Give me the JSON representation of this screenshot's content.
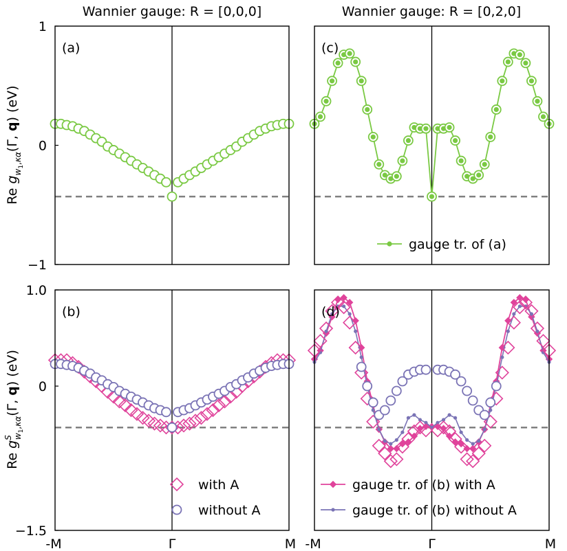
{
  "colors": {
    "green": "#7ac943",
    "magenta": "#e0439b",
    "purple": "#7a73b5",
    "dashed": "#808080"
  },
  "chart_data": [
    {
      "id": "a",
      "type": "scatter",
      "panel_label": "(a)",
      "title": "Wannier gauge: R = [0,0,0]",
      "ylabel": "Re g_{w1,κα}(Γ, q) (eV)",
      "ylim": [
        -1,
        1
      ],
      "y_ticks": [
        "1",
        "0",
        "−1"
      ],
      "x_ticks": [],
      "dashed_y": -0.43,
      "series": [
        {
          "marker": "open-circle",
          "color": "#7ac943",
          "x": [
            -1.0,
            -0.95,
            -0.9,
            -0.85,
            -0.8,
            -0.75,
            -0.7,
            -0.65,
            -0.6,
            -0.55,
            -0.5,
            -0.45,
            -0.4,
            -0.35,
            -0.3,
            -0.25,
            -0.2,
            -0.15,
            -0.1,
            -0.05,
            0.0,
            0.05,
            0.1,
            0.15,
            0.2,
            0.25,
            0.3,
            0.35,
            0.4,
            0.45,
            0.5,
            0.55,
            0.6,
            0.65,
            0.7,
            0.75,
            0.8,
            0.85,
            0.9,
            0.95,
            1.0
          ],
          "y": [
            0.18,
            0.18,
            0.17,
            0.16,
            0.14,
            0.12,
            0.09,
            0.06,
            0.03,
            -0.01,
            -0.04,
            -0.07,
            -0.1,
            -0.13,
            -0.16,
            -0.19,
            -0.22,
            -0.25,
            -0.28,
            -0.31,
            -0.43,
            -0.31,
            -0.28,
            -0.25,
            -0.22,
            -0.19,
            -0.16,
            -0.13,
            -0.1,
            -0.07,
            -0.04,
            -0.01,
            0.03,
            0.06,
            0.09,
            0.12,
            0.14,
            0.16,
            0.17,
            0.18,
            0.18
          ]
        }
      ]
    },
    {
      "id": "c",
      "type": "line",
      "panel_label": "(c)",
      "title": "Wannier gauge: R = [0,2,0]",
      "ylim": [
        -1,
        1
      ],
      "y_ticks": [],
      "x_ticks": [],
      "dashed_y": -0.43,
      "legend": {
        "position": "bottom-right",
        "entries": [
          "gauge tr. of (a)"
        ]
      },
      "series": [
        {
          "name": "gauge tr. of (a)",
          "marker": "filled-dot-line",
          "color": "#7ac943",
          "circled": true,
          "x": [
            -1.0,
            -0.95,
            -0.9,
            -0.85,
            -0.8,
            -0.75,
            -0.7,
            -0.65,
            -0.6,
            -0.55,
            -0.5,
            -0.45,
            -0.4,
            -0.35,
            -0.3,
            -0.25,
            -0.2,
            -0.15,
            -0.1,
            -0.05,
            0.0,
            0.05,
            0.1,
            0.15,
            0.2,
            0.25,
            0.3,
            0.35,
            0.4,
            0.45,
            0.5,
            0.55,
            0.6,
            0.65,
            0.7,
            0.75,
            0.8,
            0.85,
            0.9,
            0.95,
            1.0
          ],
          "y": [
            0.18,
            0.24,
            0.37,
            0.54,
            0.69,
            0.76,
            0.77,
            0.7,
            0.54,
            0.3,
            0.07,
            -0.16,
            -0.25,
            -0.28,
            -0.26,
            -0.13,
            0.04,
            0.15,
            0.14,
            0.14,
            -0.43,
            0.14,
            0.14,
            0.15,
            0.04,
            -0.13,
            -0.26,
            -0.28,
            -0.25,
            -0.16,
            0.07,
            0.3,
            0.54,
            0.7,
            0.77,
            0.76,
            0.69,
            0.54,
            0.37,
            0.24,
            0.18
          ]
        }
      ]
    },
    {
      "id": "b",
      "type": "scatter",
      "panel_label": "(b)",
      "ylabel": "Re g^S_{w1,κα}(Γ, q) (eV)",
      "ylim": [
        -1.5,
        1.0
      ],
      "y_ticks": [
        "1.0",
        "0",
        "−1.5"
      ],
      "x_ticks": [
        "-M",
        "Γ",
        "M"
      ],
      "dashed_y": -0.43,
      "legend": {
        "position": "bottom-right",
        "entries": [
          "with A",
          "without A"
        ]
      },
      "series": [
        {
          "name": "with A",
          "marker": "open-diamond",
          "color": "#e0439b",
          "x": [
            -1.0,
            -0.95,
            -0.9,
            -0.85,
            -0.8,
            -0.75,
            -0.7,
            -0.65,
            -0.6,
            -0.55,
            -0.5,
            -0.45,
            -0.4,
            -0.35,
            -0.3,
            -0.25,
            -0.2,
            -0.15,
            -0.1,
            -0.05,
            0.0,
            0.05,
            0.1,
            0.15,
            0.2,
            0.25,
            0.3,
            0.35,
            0.4,
            0.45,
            0.5,
            0.55,
            0.6,
            0.65,
            0.7,
            0.75,
            0.8,
            0.85,
            0.9,
            0.95,
            1.0
          ],
          "y": [
            0.27,
            0.27,
            0.27,
            0.24,
            0.2,
            0.15,
            0.1,
            0.05,
            0.0,
            -0.06,
            -0.11,
            -0.16,
            -0.2,
            -0.25,
            -0.29,
            -0.33,
            -0.36,
            -0.39,
            -0.41,
            -0.43,
            -0.43,
            -0.43,
            -0.41,
            -0.39,
            -0.36,
            -0.33,
            -0.29,
            -0.25,
            -0.2,
            -0.16,
            -0.11,
            -0.06,
            0.0,
            0.05,
            0.1,
            0.15,
            0.2,
            0.24,
            0.27,
            0.27,
            0.27
          ]
        },
        {
          "name": "without A",
          "marker": "open-circle",
          "color": "#7a73b5",
          "x": [
            -1.0,
            -0.95,
            -0.9,
            -0.85,
            -0.8,
            -0.75,
            -0.7,
            -0.65,
            -0.6,
            -0.55,
            -0.5,
            -0.45,
            -0.4,
            -0.35,
            -0.3,
            -0.25,
            -0.2,
            -0.15,
            -0.1,
            -0.05,
            0.0,
            0.05,
            0.1,
            0.15,
            0.2,
            0.25,
            0.3,
            0.35,
            0.4,
            0.45,
            0.5,
            0.55,
            0.6,
            0.65,
            0.7,
            0.75,
            0.8,
            0.85,
            0.9,
            0.95,
            1.0
          ],
          "y": [
            0.23,
            0.23,
            0.22,
            0.21,
            0.19,
            0.16,
            0.13,
            0.09,
            0.06,
            0.02,
            -0.01,
            -0.05,
            -0.08,
            -0.11,
            -0.14,
            -0.17,
            -0.2,
            -0.23,
            -0.25,
            -0.27,
            -0.43,
            -0.27,
            -0.25,
            -0.23,
            -0.2,
            -0.17,
            -0.14,
            -0.11,
            -0.08,
            -0.05,
            -0.01,
            0.02,
            0.06,
            0.09,
            0.13,
            0.16,
            0.19,
            0.21,
            0.22,
            0.23,
            0.23
          ]
        }
      ]
    },
    {
      "id": "d",
      "type": "line",
      "panel_label": "(d)",
      "ylim": [
        -1.5,
        1.0
      ],
      "y_ticks": [],
      "x_ticks": [
        "-M",
        "Γ",
        "M"
      ],
      "dashed_y": -0.43,
      "legend": {
        "position": "bottom-right",
        "entries": [
          "gauge tr. of (b) with A",
          "gauge tr. of (b) without A"
        ]
      },
      "series": [
        {
          "name": "gauge tr. of (b) with A",
          "marker": "filled-diamond-line",
          "color": "#e0439b",
          "x": [
            -1.0,
            -0.95,
            -0.9,
            -0.85,
            -0.8,
            -0.75,
            -0.7,
            -0.65,
            -0.6,
            -0.55,
            -0.5,
            -0.45,
            -0.4,
            -0.35,
            -0.3,
            -0.25,
            -0.2,
            -0.15,
            -0.1,
            -0.05,
            0.0,
            0.05,
            0.1,
            0.15,
            0.2,
            0.25,
            0.3,
            0.35,
            0.4,
            0.45,
            0.5,
            0.55,
            0.6,
            0.65,
            0.7,
            0.75,
            0.8,
            0.85,
            0.9,
            0.95,
            1.0
          ],
          "y": [
            0.28,
            0.37,
            0.55,
            0.72,
            0.9,
            0.92,
            0.87,
            0.68,
            0.4,
            0.05,
            -0.2,
            -0.45,
            -0.58,
            -0.65,
            -0.65,
            -0.6,
            -0.58,
            -0.52,
            -0.44,
            -0.42,
            -0.42,
            -0.42,
            -0.44,
            -0.52,
            -0.58,
            -0.6,
            -0.65,
            -0.65,
            -0.58,
            -0.45,
            -0.2,
            0.05,
            0.4,
            0.68,
            0.87,
            0.92,
            0.9,
            0.72,
            0.55,
            0.37,
            0.28
          ]
        },
        {
          "name": "gauge tr. of (b) without A",
          "marker": "small-dot-line",
          "color": "#7a73b5",
          "x": [
            -1.0,
            -0.95,
            -0.9,
            -0.85,
            -0.8,
            -0.75,
            -0.7,
            -0.65,
            -0.6,
            -0.55,
            -0.5,
            -0.45,
            -0.4,
            -0.35,
            -0.3,
            -0.25,
            -0.2,
            -0.15,
            -0.1,
            -0.05,
            0.0,
            0.05,
            0.1,
            0.15,
            0.2,
            0.25,
            0.3,
            0.35,
            0.4,
            0.45,
            0.5,
            0.55,
            0.6,
            0.65,
            0.7,
            0.75,
            0.8,
            0.85,
            0.9,
            0.95,
            1.0
          ],
          "y": [
            0.25,
            0.35,
            0.57,
            0.75,
            0.83,
            0.83,
            0.75,
            0.57,
            0.3,
            0.0,
            -0.25,
            -0.45,
            -0.57,
            -0.6,
            -0.56,
            -0.48,
            -0.33,
            -0.3,
            -0.35,
            -0.38,
            -0.43,
            -0.38,
            -0.35,
            -0.3,
            -0.33,
            -0.48,
            -0.56,
            -0.6,
            -0.57,
            -0.45,
            -0.25,
            0.0,
            0.3,
            0.57,
            0.75,
            0.83,
            0.83,
            0.75,
            0.57,
            0.35,
            0.25
          ]
        },
        {
          "name": "",
          "marker": "open-diamond",
          "color": "#e0439b",
          "x": [
            -1.0,
            -0.95,
            -0.9,
            -0.85,
            -0.8,
            -0.75,
            -0.7,
            -0.65,
            -0.6,
            -0.55,
            -0.5,
            -0.45,
            -0.4,
            -0.35,
            -0.3,
            -0.25,
            -0.2,
            -0.15,
            -0.1,
            -0.05,
            0.05,
            0.1,
            0.15,
            0.2,
            0.25,
            0.3,
            0.35,
            0.4,
            0.45,
            0.5,
            0.55,
            0.6,
            0.65,
            0.7,
            0.75,
            0.8,
            0.85,
            0.9,
            0.95,
            1.0
          ],
          "y": [
            0.37,
            0.47,
            0.6,
            0.78,
            0.87,
            0.82,
            0.66,
            0.4,
            0.14,
            -0.13,
            -0.37,
            -0.62,
            -0.7,
            -0.78,
            -0.76,
            -0.63,
            -0.55,
            -0.47,
            -0.43,
            -0.46,
            -0.46,
            -0.43,
            -0.47,
            -0.55,
            -0.63,
            -0.76,
            -0.78,
            -0.7,
            -0.62,
            -0.37,
            -0.13,
            0.14,
            0.4,
            0.66,
            0.82,
            0.87,
            0.78,
            0.6,
            0.47,
            0.37
          ]
        },
        {
          "name": "",
          "marker": "open-circle",
          "color": "#7a73b5",
          "x": [
            -0.6,
            -0.55,
            -0.5,
            -0.45,
            -0.4,
            -0.35,
            -0.3,
            -0.25,
            -0.2,
            -0.15,
            -0.1,
            -0.05,
            0.05,
            0.1,
            0.15,
            0.2,
            0.25,
            0.3,
            0.35,
            0.4,
            0.45,
            0.5,
            0.55
          ],
          "y": [
            0.2,
            0.0,
            -0.17,
            -0.3,
            -0.25,
            -0.15,
            -0.05,
            0.05,
            0.12,
            0.15,
            0.17,
            0.17,
            0.17,
            0.17,
            0.15,
            0.12,
            0.05,
            -0.05,
            -0.15,
            -0.25,
            -0.3,
            -0.17,
            0.0
          ]
        }
      ]
    }
  ]
}
